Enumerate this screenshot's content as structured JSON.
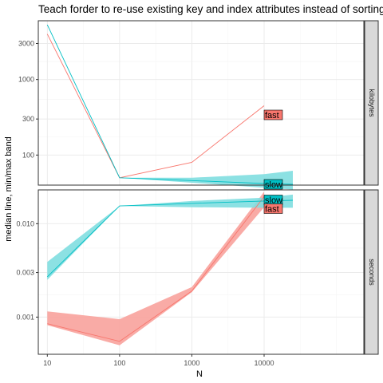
{
  "chart_data": {
    "type": "line",
    "title": "Teach forder to re-use existing key and index attributes instead of sorting fr",
    "xlabel": "N",
    "ylabel": "median line, min/max band",
    "x_scale": "log10",
    "x_ticks": [
      10,
      100,
      1000,
      10000
    ],
    "x_tick_labels": [
      "10",
      "100",
      "1000",
      "10000"
    ],
    "grid": true,
    "colors": {
      "fast": "#F8766D",
      "fast_band": "#F8A29C",
      "slow": "#00BFC4",
      "slow_band": "#7FDEE0",
      "strip": "#D9D9D9",
      "grid_major": "#EBEBEB",
      "grid_minor": "#F5F5F5"
    },
    "facets": [
      {
        "strip": "kilobytes",
        "y_scale": "log10",
        "y_ticks": [
          100,
          300,
          1000,
          3000
        ],
        "y_tick_labels": [
          "100",
          "300",
          "1000",
          "3000"
        ],
        "series": [
          {
            "name": "fast",
            "x": [
              10,
              100,
              1000,
              10000
            ],
            "median": [
              4000,
              50,
              80,
              450
            ],
            "min": [
              4000,
              50,
              80,
              450
            ],
            "max": [
              4000,
              50,
              80,
              450
            ]
          },
          {
            "name": "slow",
            "x": [
              10,
              100,
              1000,
              10000,
              25000
            ],
            "median": [
              5300,
              50,
              46,
              42,
              41
            ],
            "min": [
              5300,
              50,
              43,
              37,
              35
            ],
            "max": [
              5300,
              50,
              50,
              56,
              62
            ]
          }
        ]
      },
      {
        "strip": "seconds",
        "y_scale": "log10",
        "y_ticks": [
          0.001,
          0.003,
          0.01
        ],
        "y_tick_labels": [
          "0.001",
          "0.003",
          "0.010"
        ],
        "series": [
          {
            "name": "fast",
            "x": [
              10,
              100,
              1000,
              10000
            ],
            "median": [
              0.00085,
              0.00055,
              0.0019,
              0.0195
            ],
            "min": [
              0.00082,
              0.0005,
              0.00185,
              0.015
            ],
            "max": [
              0.00115,
              0.00095,
              0.0021,
              0.022
            ]
          },
          {
            "name": "slow",
            "x": [
              10,
              100,
              1000,
              10000,
              25000
            ],
            "median": [
              0.0027,
              0.0155,
              0.0165,
              0.0175,
              0.0178
            ],
            "min": [
              0.0025,
              0.0155,
              0.015,
              0.0148,
              0.0148
            ],
            "max": [
              0.0039,
              0.0155,
              0.0175,
              0.019,
              0.0205
            ]
          }
        ]
      }
    ],
    "labels": [
      {
        "facet": 0,
        "series": "fast",
        "text": "fast",
        "x": 10000,
        "y": 340,
        "fill": "#F8766D"
      },
      {
        "facet": 0,
        "series": "slow",
        "text": "slow",
        "x": 10000,
        "y": 41,
        "fill": "#00BFC4"
      },
      {
        "facet": 1,
        "series": "slow",
        "text": "slow",
        "x": 10000,
        "y": 0.018,
        "fill": "#00BFC4"
      },
      {
        "facet": 1,
        "series": "fast",
        "text": "fast",
        "x": 10000,
        "y": 0.0145,
        "fill": "#F8766D"
      }
    ]
  }
}
